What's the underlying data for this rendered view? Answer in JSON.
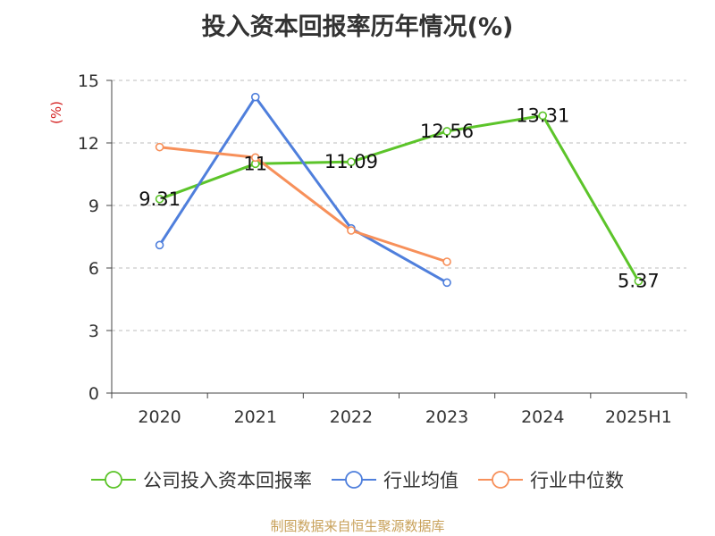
{
  "chart_data": {
    "type": "line",
    "title": "投入资本回报率历年情况(%)",
    "ylabel": "(%)",
    "xlabel": "",
    "categories": [
      "2020",
      "2021",
      "2022",
      "2023",
      "2024",
      "2025H1"
    ],
    "ylim": [
      0,
      15
    ],
    "yticks": [
      0,
      3,
      6,
      9,
      12,
      15
    ],
    "grid": true,
    "legend_position": "bottom",
    "series": [
      {
        "name": "公司投入资本回报率",
        "color": "#5cc42a",
        "values": [
          9.31,
          11.0,
          11.09,
          12.56,
          13.31,
          5.37
        ],
        "labels": [
          "9.31",
          "11",
          "11.09",
          "12.56",
          "13.31",
          "5.37"
        ],
        "show_labels": true
      },
      {
        "name": "行业均值",
        "color": "#4f7fdc",
        "values": [
          7.1,
          14.2,
          7.9,
          5.3,
          null,
          null
        ],
        "show_labels": false
      },
      {
        "name": "行业中位数",
        "color": "#f7905a",
        "values": [
          11.8,
          11.3,
          7.8,
          6.3,
          null,
          null
        ],
        "show_labels": false
      }
    ]
  },
  "footer": {
    "source": "制图数据来自恒生聚源数据库"
  }
}
